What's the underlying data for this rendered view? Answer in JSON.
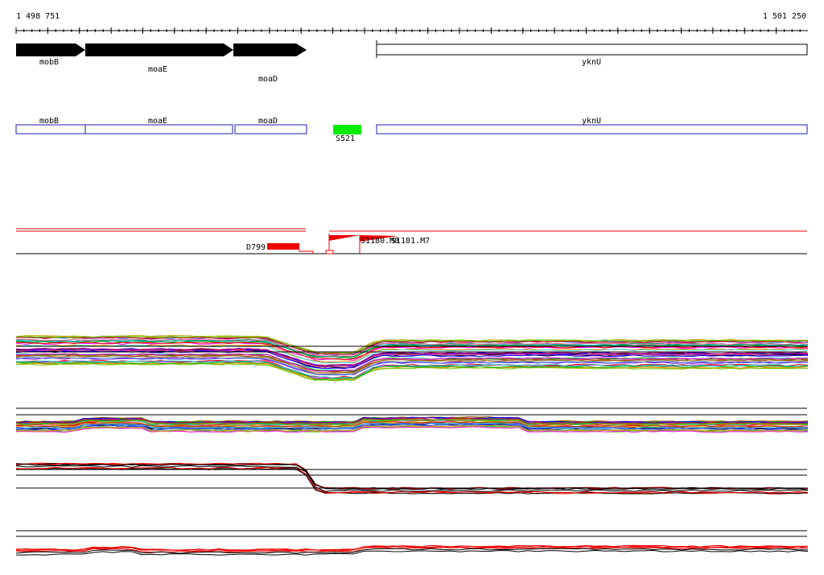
{
  "ruler": {
    "start_label": "1 498 751",
    "end_label": "1 501 250",
    "start_bp": 1498751,
    "end_bp": 1501250
  },
  "genes": [
    {
      "name": "mobB",
      "strand": "+",
      "start": 1498751,
      "end": 1498971
    },
    {
      "name": "moaE",
      "strand": "+",
      "start": 1498971,
      "end": 1499439
    },
    {
      "name": "moaD",
      "strand": "+",
      "start": 1499439,
      "end": 1499671
    },
    {
      "name": "yknU",
      "strand": "-",
      "start": 1499879,
      "end": 1501242
    }
  ],
  "transcription_units": [
    {
      "name": "mobB"
    },
    {
      "name": "moaE"
    },
    {
      "name": "moaD"
    },
    {
      "name": "yknU"
    }
  ],
  "regulatory_sites": [
    {
      "name": "S521",
      "start": 1499748,
      "end": 1499834,
      "color": "#00ee00"
    }
  ],
  "features": [
    {
      "name": "D799",
      "color": "#ee0000"
    },
    {
      "name": "S1180.M8",
      "color": "#ee0000"
    },
    {
      "name": "S1181.M7",
      "color": "#ee0000"
    }
  ],
  "colors": {
    "gene_fill": "#000000",
    "tu_outline": "#1c1cb0",
    "site_green": "#00ee00",
    "feature_red": "#ee0000"
  }
}
